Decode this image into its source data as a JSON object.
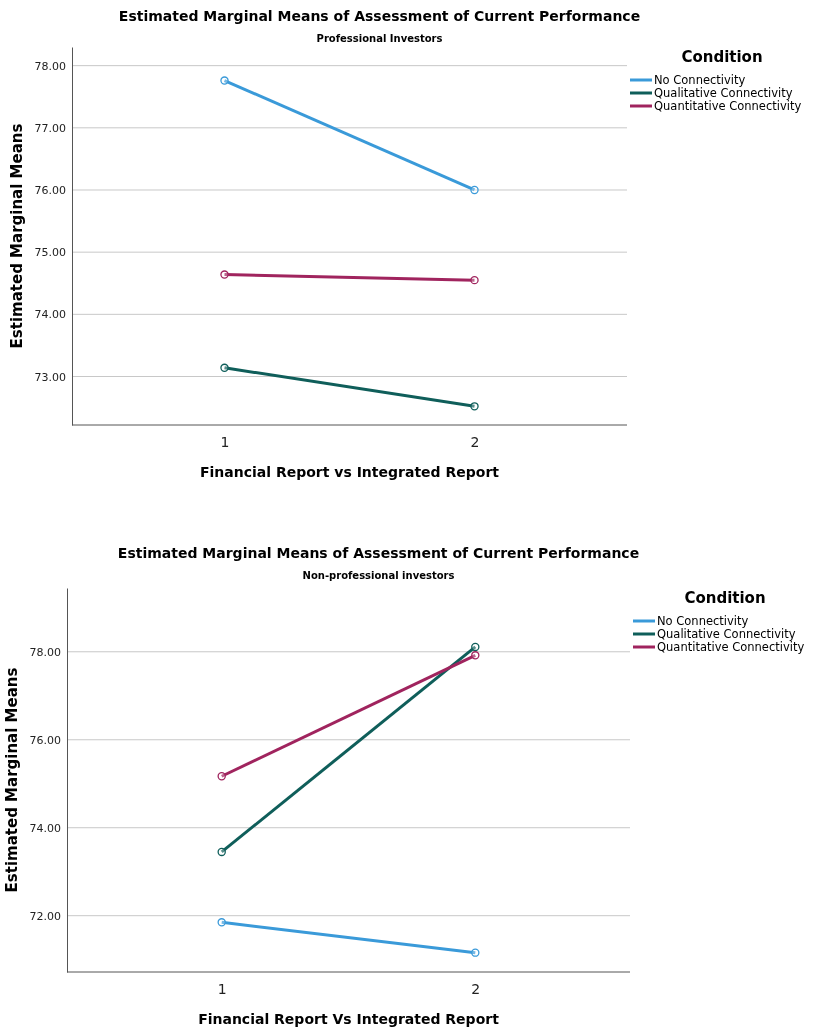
{
  "chart_data": [
    {
      "type": "line",
      "title": "Estimated Marginal Means of Assessment of Current Performance",
      "subtitle": "Professional Investors",
      "xlabel": "Financial Report vs Integrated Report",
      "ylabel": "Estimated Marginal Means",
      "legend_title": "Condition",
      "categories": [
        "1",
        "2"
      ],
      "series": [
        {
          "name": "No Connectivity",
          "color": "#3a9ad9",
          "values": [
            77.76,
            76.0
          ]
        },
        {
          "name": "Qualitative Connectivity",
          "color": "#0f5e5a",
          "values": [
            73.14,
            72.52
          ]
        },
        {
          "name": "Quantitative Connectivity",
          "color": "#a0245e",
          "values": [
            74.64,
            74.55
          ]
        }
      ],
      "ylim": [
        72.22,
        78.3
      ],
      "yticks": [
        {
          "value": 73,
          "label": "73.00"
        },
        {
          "value": 74,
          "label": "74.00"
        },
        {
          "value": 75,
          "label": "75.00"
        },
        {
          "value": 76,
          "label": "76.00"
        },
        {
          "value": 77,
          "label": "77.00"
        },
        {
          "value": 78,
          "label": "78.00"
        }
      ],
      "grid": "y",
      "legend": "right",
      "marker": "circle",
      "line_style": "solid"
    },
    {
      "type": "line",
      "title": "Estimated Marginal Means of Assessment of Current Performance",
      "subtitle": "Non-professional investors",
      "xlabel": "Financial Report Vs Integrated Report",
      "ylabel": "Estimated Marginal Means",
      "legend_title": "Condition",
      "categories": [
        "1",
        "2"
      ],
      "series": [
        {
          "name": "No Connectivity",
          "color": "#3a9ad9",
          "values": [
            71.85,
            71.16
          ]
        },
        {
          "name": "Qualitative Connectivity",
          "color": "#0f5e5a",
          "values": [
            73.45,
            78.11
          ]
        },
        {
          "name": "Quantitative Connectivity",
          "color": "#a0245e",
          "values": [
            75.17,
            77.92
          ]
        }
      ],
      "ylim": [
        70.72,
        79.45
      ],
      "yticks": [
        {
          "value": 72,
          "label": "72.00"
        },
        {
          "value": 74,
          "label": "74.00"
        },
        {
          "value": 76,
          "label": "76.00"
        },
        {
          "value": 78,
          "label": "78.00"
        }
      ],
      "grid": "y",
      "legend": "right",
      "marker": "circle",
      "line_style": "solid"
    }
  ]
}
